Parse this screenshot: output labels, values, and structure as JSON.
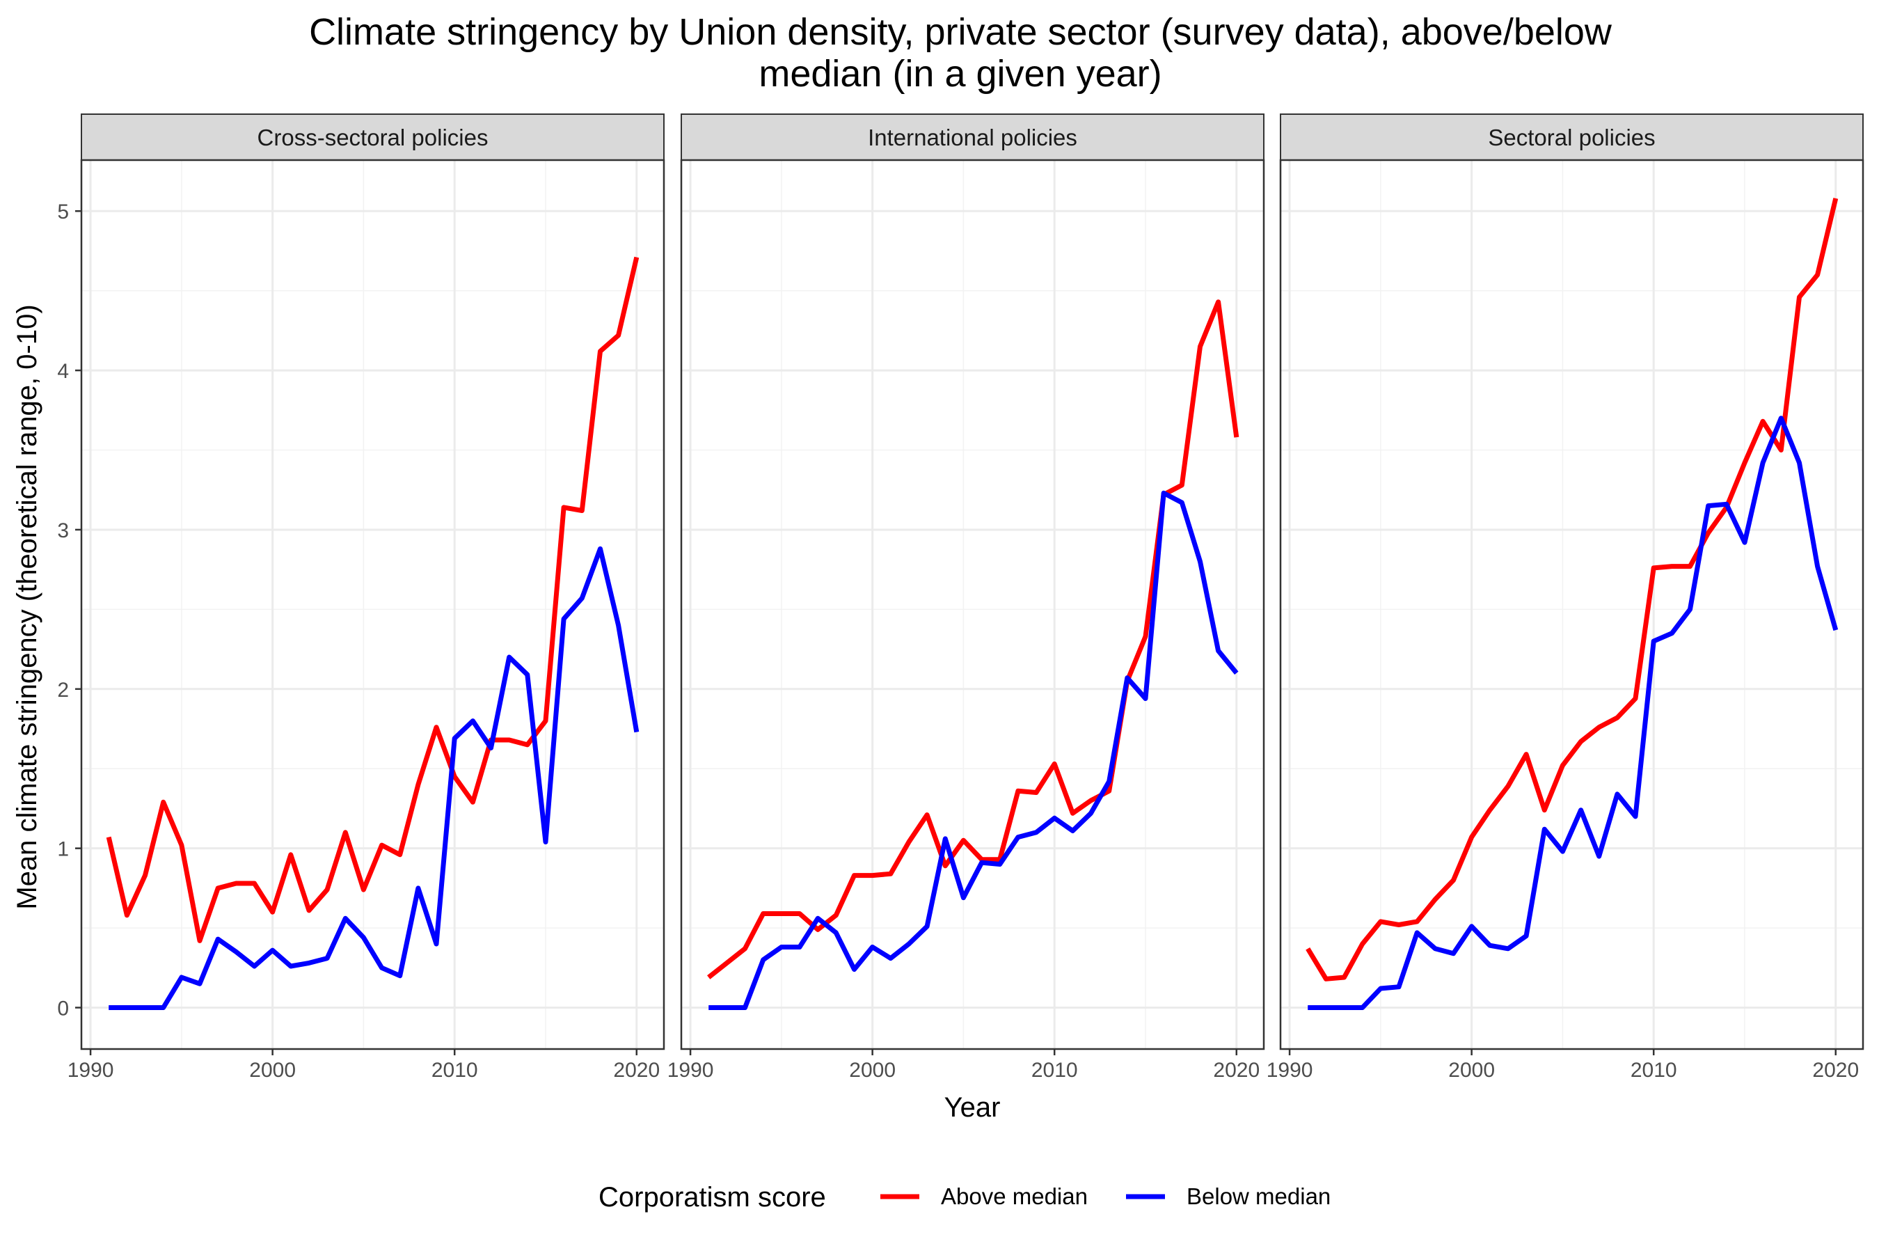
{
  "chart_data": {
    "type": "line",
    "title_lines": [
      "Climate stringency by Union density, private sector (survey data), above/below",
      "median (in a given year)"
    ],
    "xlabel": "Year",
    "ylabel": "Mean climate stringency (theoretical range, 0-10)",
    "xlim": [
      1989.5,
      2021.5
    ],
    "ylim": [
      -0.26,
      5.32
    ],
    "x_ticks": [
      1990,
      2000,
      2010,
      2020
    ],
    "x_tick_labels": [
      "1990",
      "2000",
      "2010",
      "2020"
    ],
    "y_ticks": [
      0,
      1,
      2,
      3,
      4,
      5
    ],
    "y_tick_labels": [
      "0",
      "1",
      "2",
      "3",
      "4",
      "5"
    ],
    "grid": true,
    "legend": {
      "title": "Corporatism score",
      "position": "bottom",
      "entries": [
        {
          "label": "Above median",
          "color": "#ff0000"
        },
        {
          "label": "Below median",
          "color": "#0000ff"
        }
      ]
    },
    "x": [
      1991,
      1992,
      1993,
      1994,
      1995,
      1996,
      1997,
      1998,
      1999,
      2000,
      2001,
      2002,
      2003,
      2004,
      2005,
      2006,
      2007,
      2008,
      2009,
      2010,
      2011,
      2012,
      2013,
      2014,
      2015,
      2016,
      2017,
      2018,
      2019,
      2020
    ],
    "panels": [
      {
        "strip": "Cross-sectoral policies",
        "series": [
          {
            "name": "Above median",
            "color": "#ff0000",
            "values": [
              1.07,
              0.58,
              0.83,
              1.29,
              1.02,
              0.42,
              0.75,
              0.78,
              0.78,
              0.6,
              0.96,
              0.61,
              0.74,
              1.1,
              0.74,
              1.02,
              0.96,
              1.4,
              1.76,
              1.45,
              1.29,
              1.68,
              1.68,
              1.65,
              1.8,
              3.14,
              3.12,
              4.12,
              4.22,
              4.71
            ]
          },
          {
            "name": "Below median",
            "color": "#0000ff",
            "values": [
              0,
              0,
              0,
              0,
              0.19,
              0.15,
              0.43,
              0.35,
              0.26,
              0.36,
              0.26,
              0.28,
              0.31,
              0.56,
              0.44,
              0.25,
              0.2,
              0.75,
              0.4,
              1.69,
              1.8,
              1.63,
              2.2,
              2.09,
              1.04,
              2.44,
              2.57,
              2.88,
              2.4,
              1.73
            ]
          }
        ]
      },
      {
        "strip": "International policies",
        "series": [
          {
            "name": "Above median",
            "color": "#ff0000",
            "values": [
              0.19,
              0.28,
              0.37,
              0.59,
              0.59,
              0.59,
              0.49,
              0.58,
              0.83,
              0.83,
              0.84,
              1.04,
              1.21,
              0.89,
              1.05,
              0.93,
              0.93,
              1.36,
              1.35,
              1.53,
              1.22,
              1.3,
              1.36,
              2.05,
              2.33,
              3.22,
              3.28,
              4.15,
              4.43,
              3.58
            ]
          },
          {
            "name": "Below median",
            "color": "#0000ff",
            "values": [
              0,
              0,
              0,
              0.3,
              0.38,
              0.38,
              0.56,
              0.47,
              0.24,
              0.38,
              0.31,
              0.4,
              0.51,
              1.06,
              0.69,
              0.91,
              0.9,
              1.07,
              1.1,
              1.19,
              1.11,
              1.22,
              1.42,
              2.07,
              1.94,
              3.23,
              3.17,
              2.8,
              2.24,
              2.1
            ]
          }
        ]
      },
      {
        "strip": "Sectoral policies",
        "series": [
          {
            "name": "Above median",
            "color": "#ff0000",
            "values": [
              0.37,
              0.18,
              0.19,
              0.4,
              0.54,
              0.52,
              0.54,
              0.68,
              0.8,
              1.07,
              1.24,
              1.39,
              1.59,
              1.24,
              1.52,
              1.67,
              1.76,
              1.82,
              1.94,
              2.76,
              2.77,
              2.77,
              2.98,
              3.14,
              3.42,
              3.68,
              3.5,
              4.46,
              4.6,
              5.08
            ]
          },
          {
            "name": "Below median",
            "color": "#0000ff",
            "values": [
              0,
              0,
              0,
              0,
              0.12,
              0.13,
              0.47,
              0.37,
              0.34,
              0.51,
              0.39,
              0.37,
              0.45,
              1.12,
              0.98,
              1.24,
              0.95,
              1.34,
              1.2,
              2.3,
              2.35,
              2.5,
              3.15,
              3.16,
              2.92,
              3.42,
              3.7,
              3.42,
              2.77,
              2.37
            ]
          }
        ]
      }
    ]
  }
}
